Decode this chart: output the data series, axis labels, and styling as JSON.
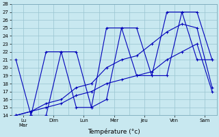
{
  "background_color": "#c8e8f0",
  "grid_color": "#98c4d0",
  "line_color": "#0000bb",
  "xlabel": "Température (°c)",
  "ylim": [
    14,
    28
  ],
  "yticks": [
    14,
    15,
    16,
    17,
    18,
    19,
    20,
    21,
    22,
    23,
    24,
    25,
    26,
    27,
    28
  ],
  "xlim": [
    -0.3,
    13.3
  ],
  "x_day_positions": [
    0.5,
    2.5,
    4.5,
    6.5,
    8.5,
    10.5,
    12.5
  ],
  "x_day_labels": [
    "Lu\nMar",
    "Dim",
    "Lun",
    "Mer",
    "Jeu",
    "Ven",
    "Sam"
  ],
  "series": [
    [
      21,
      14,
      14,
      22,
      22,
      15,
      16,
      25,
      25,
      19,
      19,
      27,
      27,
      21
    ],
    [
      14,
      14,
      22,
      22,
      15,
      15,
      25,
      25,
      19,
      19,
      27,
      27,
      21,
      21
    ],
    [
      14,
      14.5,
      15.5,
      16,
      17.5,
      18,
      20,
      21,
      21.5,
      23,
      24.5,
      25.5,
      25,
      17.5
    ],
    [
      14,
      14.5,
      15,
      15.5,
      16.5,
      17,
      18,
      18.5,
      19,
      19.5,
      21,
      22,
      23,
      17
    ]
  ]
}
